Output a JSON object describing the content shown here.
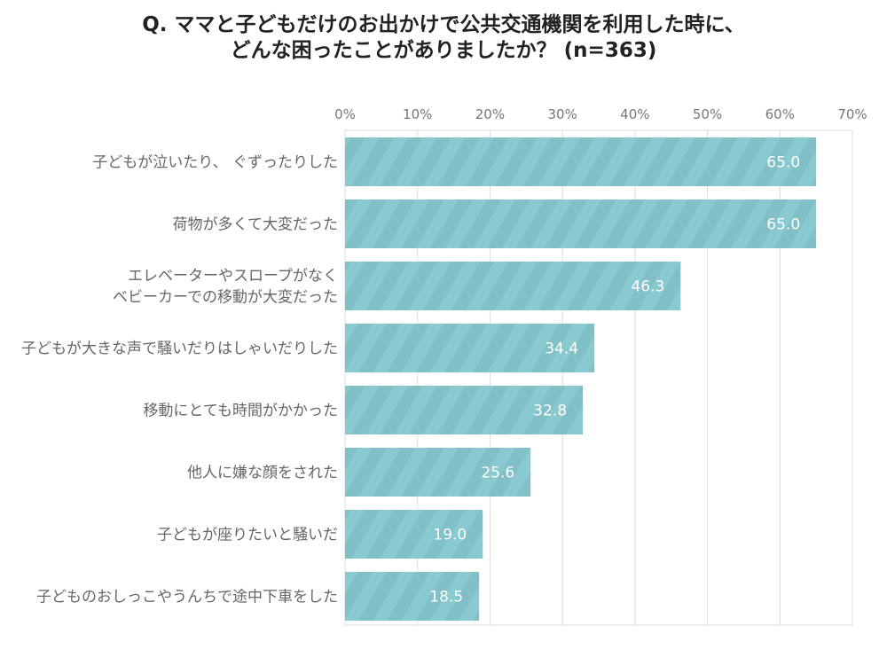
{
  "chart_data": {
    "type": "bar",
    "orientation": "horizontal",
    "title_lines": [
      "Q. ママと子どもだけのお出かけで公共交通機関を利用した時に、",
      "どんな困ったことがありましたか？ (n=363)"
    ],
    "categories": [
      [
        "子どもが泣いたり、 ぐずったりした"
      ],
      [
        "荷物が多くて大変だった"
      ],
      [
        "エレベーターやスロープがなく",
        "ベビーカーでの移動が大変だった"
      ],
      [
        "子どもが大きな声で騒いだりはしゃいだりした"
      ],
      [
        "移動にとても時間がかかった"
      ],
      [
        "他人に嫌な顔をされた"
      ],
      [
        "子どもが座りたいと騒いだ"
      ],
      [
        "子どものおしっこやうんちで途中下車をした"
      ]
    ],
    "values": [
      65.0,
      65.0,
      46.3,
      34.4,
      32.8,
      25.6,
      19.0,
      18.5
    ],
    "value_labels": [
      "65.0",
      "65.0",
      "46.3",
      "34.4",
      "32.8",
      "25.6",
      "19.0",
      "18.5"
    ],
    "xlim": [
      0,
      70
    ],
    "xticks": [
      "0%",
      "10%",
      "20%",
      "30%",
      "40%",
      "50%",
      "60%",
      "70%"
    ],
    "xtick_values": [
      0,
      10,
      20,
      30,
      40,
      50,
      60,
      70
    ],
    "grid": true,
    "axis_position": "top",
    "colors": {
      "bar": "#88cad0",
      "stripe": "#7fbfc6",
      "label": "#ffffff",
      "text": "#666666",
      "grid": "#dddddd"
    }
  }
}
